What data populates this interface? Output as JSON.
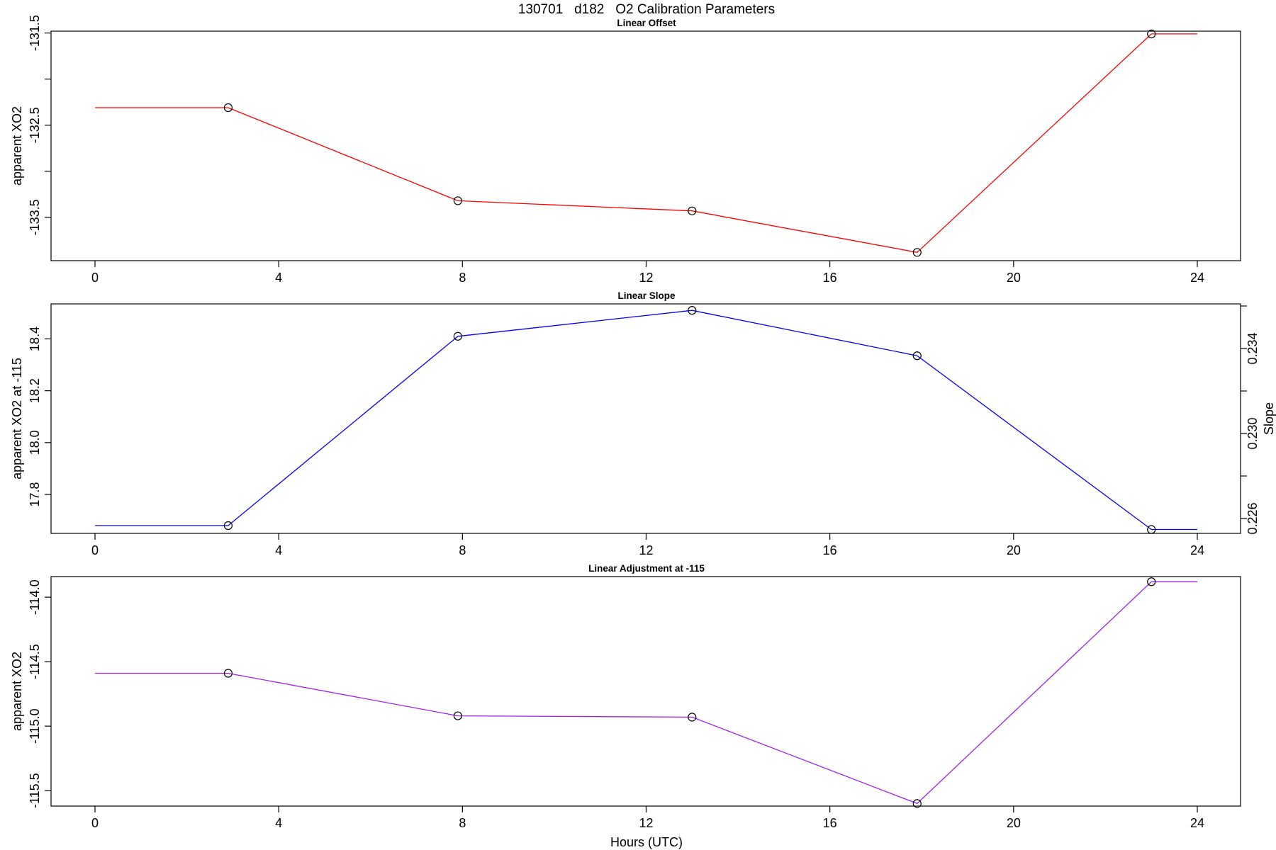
{
  "figure": {
    "title": "130701   d182   O2 Calibration Parameters",
    "xlabel": "Hours (UTC)"
  },
  "chart_data": [
    {
      "type": "line",
      "title": "Linear Offset",
      "xlabel": "",
      "ylabel": "apparent XO2",
      "color": "#ff0000",
      "xlim": [
        0,
        24
      ],
      "ylim": [
        -133.97,
        -131.48
      ],
      "xticks": [
        0,
        4,
        8,
        12,
        16,
        20,
        24
      ],
      "xtick_labels": [
        "0",
        "4",
        "8",
        "12",
        "16",
        "20",
        "24"
      ],
      "yticks": [
        -131.5,
        -132.0,
        -132.5,
        -133.0,
        -133.5
      ],
      "ytick_labels": [
        "-131.5",
        "",
        "-132.5",
        "",
        "-133.5"
      ],
      "x": [
        0,
        2.9,
        7.9,
        13.0,
        17.9,
        23.0,
        24
      ],
      "values": [
        -132.31,
        -132.31,
        -133.32,
        -133.43,
        -133.88,
        -131.51,
        -131.51
      ],
      "markers_x": [
        2.9,
        7.9,
        13.0,
        17.9,
        23.0
      ],
      "markers_y": [
        -132.31,
        -133.32,
        -133.43,
        -133.88,
        -131.51
      ],
      "grid": false
    },
    {
      "type": "line",
      "title": "Linear Slope",
      "xlabel": "",
      "ylabel": "apparent XO2 at -115",
      "y2label": "Slope",
      "color": "#0000ff",
      "xlim": [
        0,
        24
      ],
      "ylim": [
        17.65,
        18.535
      ],
      "xticks": [
        0,
        4,
        8,
        12,
        16,
        20,
        24
      ],
      "xtick_labels": [
        "0",
        "4",
        "8",
        "12",
        "16",
        "20",
        "24"
      ],
      "yticks": [
        17.8,
        18.0,
        18.2,
        18.4
      ],
      "ytick_labels": [
        "17.8",
        "18.0",
        "18.2",
        "18.4"
      ],
      "y2lim": [
        0.2253,
        0.2361
      ],
      "y2ticks": [
        0.226,
        0.228,
        0.23,
        0.232,
        0.234,
        0.236
      ],
      "y2tick_labels": [
        "0.226",
        "",
        "0.230",
        "",
        "0.234",
        ""
      ],
      "x": [
        0,
        2.9,
        7.9,
        13.0,
        17.9,
        23.0,
        24
      ],
      "values": [
        17.68,
        17.68,
        18.41,
        18.51,
        18.335,
        17.665,
        17.665
      ],
      "markers_x": [
        2.9,
        7.9,
        13.0,
        17.9,
        23.0
      ],
      "markers_y": [
        17.68,
        18.41,
        18.51,
        18.335,
        17.665
      ],
      "grid": false
    },
    {
      "type": "line",
      "title": "Linear Adjustment at -115",
      "xlabel": "Hours (UTC)",
      "ylabel": "apparent XO2",
      "color": "#a020f0",
      "xlim": [
        0,
        24
      ],
      "ylim": [
        -115.62,
        -113.84
      ],
      "xticks": [
        0,
        4,
        8,
        12,
        16,
        20,
        24
      ],
      "xtick_labels": [
        "0",
        "4",
        "8",
        "12",
        "16",
        "20",
        "24"
      ],
      "yticks": [
        -114.0,
        -114.5,
        -115.0,
        -115.5
      ],
      "ytick_labels": [
        "-114.0",
        "-114.5",
        "-115.0",
        "-115.5"
      ],
      "x": [
        0,
        2.9,
        7.9,
        13.0,
        17.9,
        23.0,
        24
      ],
      "values": [
        -114.59,
        -114.59,
        -114.92,
        -114.93,
        -115.6,
        -113.88,
        -113.88
      ],
      "markers_x": [
        2.9,
        7.9,
        13.0,
        17.9,
        23.0
      ],
      "markers_y": [
        -114.59,
        -114.92,
        -114.93,
        -115.6,
        -113.88
      ],
      "grid": false
    }
  ]
}
